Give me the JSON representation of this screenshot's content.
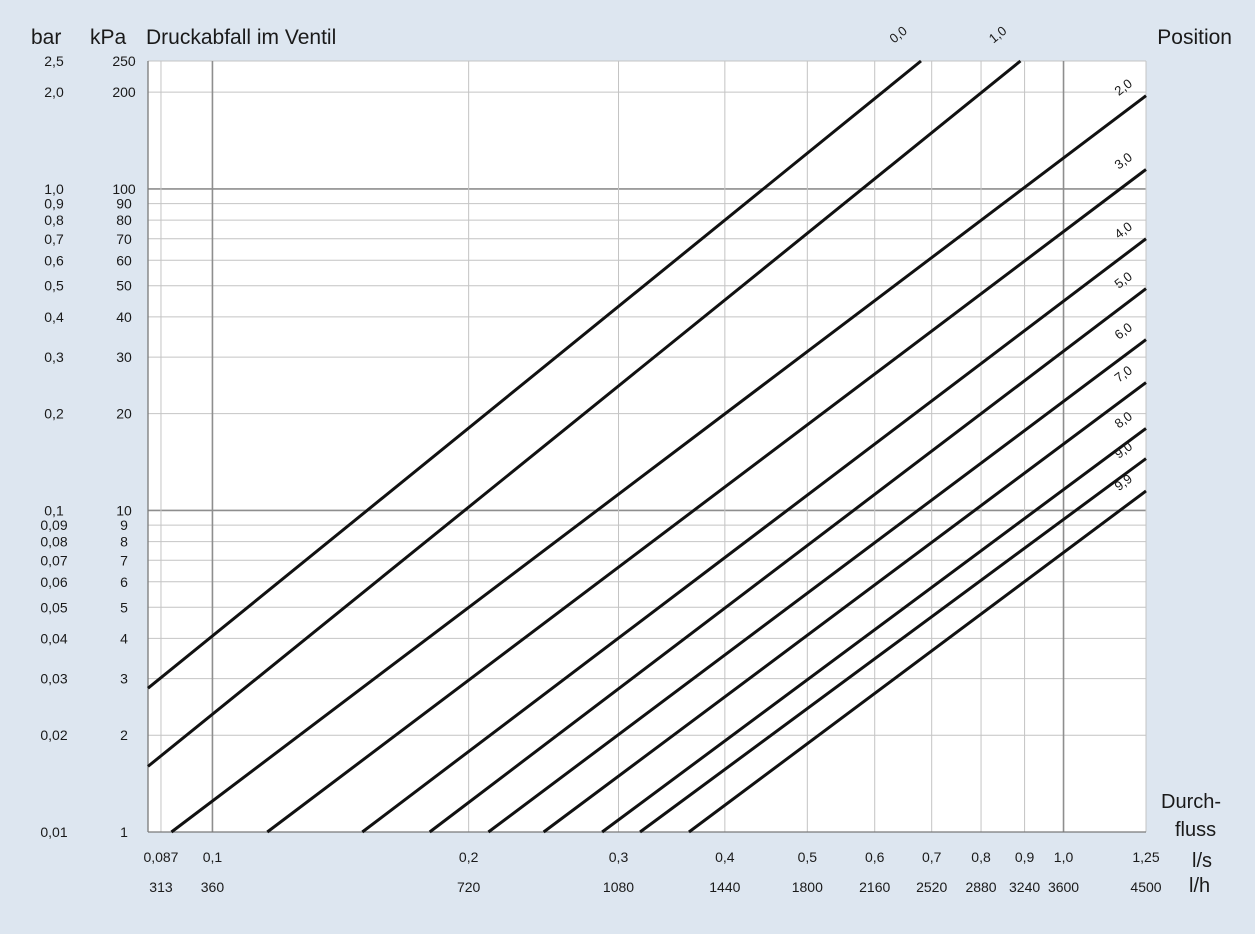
{
  "chart_data": {
    "type": "line",
    "title": "Druckabfall im Ventil",
    "y_unit_bar": "bar",
    "y_unit_kpa": "kPa",
    "legend_title": "Position",
    "x_axis_title_line1": "Durch-",
    "x_axis_title_line2": "fluss",
    "x_unit_ls": "l/s",
    "x_unit_lh": "l/h",
    "x_scale": "log",
    "y_scale": "log",
    "xlim_ls": [
      0.084,
      1.25
    ],
    "ylim_kpa": [
      1,
      250
    ],
    "grid": true,
    "x_ticks": [
      {
        "ls": 0.087,
        "ls_label": "0,087",
        "lh_label": "313"
      },
      {
        "ls": 0.1,
        "ls_label": "0,1",
        "lh_label": "360"
      },
      {
        "ls": 0.2,
        "ls_label": "0,2",
        "lh_label": "720"
      },
      {
        "ls": 0.3,
        "ls_label": "0,3",
        "lh_label": "1080"
      },
      {
        "ls": 0.4,
        "ls_label": "0,4",
        "lh_label": "1440"
      },
      {
        "ls": 0.5,
        "ls_label": "0,5",
        "lh_label": "1800"
      },
      {
        "ls": 0.6,
        "ls_label": "0,6",
        "lh_label": "2160"
      },
      {
        "ls": 0.7,
        "ls_label": "0,7",
        "lh_label": "2520"
      },
      {
        "ls": 0.8,
        "ls_label": "0,8",
        "lh_label": "2880"
      },
      {
        "ls": 0.9,
        "ls_label": "0,9",
        "lh_label": "3240"
      },
      {
        "ls": 1.0,
        "ls_label": "1,0",
        "lh_label": "3600"
      },
      {
        "ls": 1.25,
        "ls_label": "1,25",
        "lh_label": "4500"
      }
    ],
    "y_ticks": [
      {
        "kpa": 1,
        "kpa_label": "1",
        "bar_label": "0,01"
      },
      {
        "kpa": 2,
        "kpa_label": "2",
        "bar_label": "0,02"
      },
      {
        "kpa": 3,
        "kpa_label": "3",
        "bar_label": "0,03"
      },
      {
        "kpa": 4,
        "kpa_label": "4",
        "bar_label": "0,04"
      },
      {
        "kpa": 5,
        "kpa_label": "5",
        "bar_label": "0,05"
      },
      {
        "kpa": 6,
        "kpa_label": "6",
        "bar_label": "0,06"
      },
      {
        "kpa": 7,
        "kpa_label": "7",
        "bar_label": "0,07"
      },
      {
        "kpa": 8,
        "kpa_label": "8",
        "bar_label": "0,08"
      },
      {
        "kpa": 9,
        "kpa_label": "9",
        "bar_label": "0,09"
      },
      {
        "kpa": 10,
        "kpa_label": "10",
        "bar_label": "0,1"
      },
      {
        "kpa": 20,
        "kpa_label": "20",
        "bar_label": "0,2"
      },
      {
        "kpa": 30,
        "kpa_label": "30",
        "bar_label": "0,3"
      },
      {
        "kpa": 40,
        "kpa_label": "40",
        "bar_label": "0,4"
      },
      {
        "kpa": 50,
        "kpa_label": "50",
        "bar_label": "0,5"
      },
      {
        "kpa": 60,
        "kpa_label": "60",
        "bar_label": "0,6"
      },
      {
        "kpa": 70,
        "kpa_label": "70",
        "bar_label": "0,7"
      },
      {
        "kpa": 80,
        "kpa_label": "80",
        "bar_label": "0,8"
      },
      {
        "kpa": 90,
        "kpa_label": "90",
        "bar_label": "0,9"
      },
      {
        "kpa": 100,
        "kpa_label": "100",
        "bar_label": "1,0"
      },
      {
        "kpa": 200,
        "kpa_label": "200",
        "bar_label": "2,0"
      },
      {
        "kpa": 250,
        "kpa_label": "250",
        "bar_label": "2,5"
      }
    ],
    "series": [
      {
        "name": "0,0",
        "points": [
          [
            0.084,
            2.8
          ],
          [
            0.68,
            250
          ]
        ]
      },
      {
        "name": "1,0",
        "points": [
          [
            0.084,
            1.6
          ],
          [
            0.89,
            250
          ]
        ]
      },
      {
        "name": "2,0",
        "points": [
          [
            0.0895,
            1
          ],
          [
            1.25,
            195
          ]
        ]
      },
      {
        "name": "3,0",
        "points": [
          [
            0.116,
            1
          ],
          [
            1.25,
            115
          ]
        ]
      },
      {
        "name": "4,0",
        "points": [
          [
            0.15,
            1
          ],
          [
            1.25,
            70
          ]
        ]
      },
      {
        "name": "5,0",
        "points": [
          [
            0.18,
            1
          ],
          [
            1.25,
            49
          ]
        ]
      },
      {
        "name": "6,0",
        "points": [
          [
            0.211,
            1
          ],
          [
            1.25,
            34
          ]
        ]
      },
      {
        "name": "7,0",
        "points": [
          [
            0.245,
            1
          ],
          [
            1.25,
            25
          ]
        ]
      },
      {
        "name": "8,0",
        "points": [
          [
            0.287,
            1
          ],
          [
            1.25,
            18
          ]
        ]
      },
      {
        "name": "9,0",
        "points": [
          [
            0.318,
            1
          ],
          [
            1.25,
            14.5
          ]
        ]
      },
      {
        "name": "9,9",
        "points": [
          [
            0.363,
            1
          ],
          [
            1.25,
            11.5
          ]
        ]
      }
    ]
  }
}
